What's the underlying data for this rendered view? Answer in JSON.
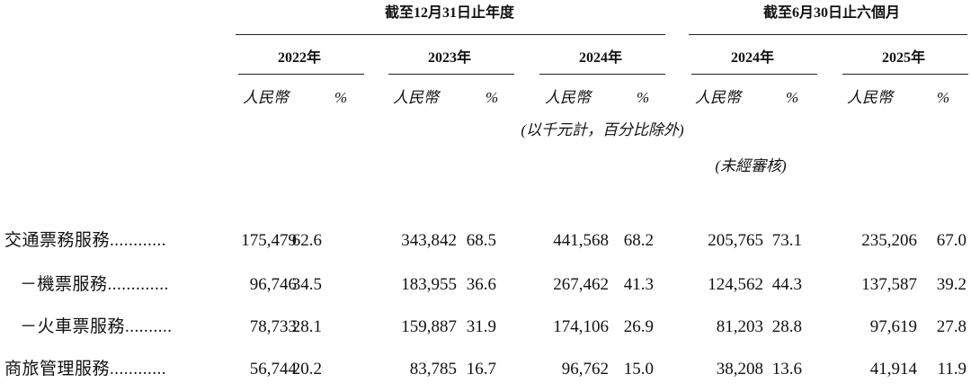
{
  "header": {
    "period_groups": [
      "截至12月31日止年度",
      "截至6月30日止六個月"
    ],
    "years": [
      "2022年",
      "2023年",
      "2024年",
      "2024年",
      "2025年"
    ],
    "units": [
      "人民幣",
      "%"
    ],
    "note": "(以千元計，百分比除外)",
    "unaudited": "(未經審核)"
  },
  "table": {
    "rows": [
      {
        "label": "交通票務服務............",
        "cells": [
          "175,479",
          "62.6",
          "343,842",
          "68.5",
          "441,568",
          "68.2",
          "205,765",
          "73.1",
          "235,206",
          "67.0"
        ]
      },
      {
        "label": "－機票服務.............",
        "cells": [
          "96,746",
          "34.5",
          "183,955",
          "36.6",
          "267,462",
          "41.3",
          "124,562",
          "44.3",
          "137,587",
          "39.2"
        ]
      },
      {
        "label": "－火車票服務..........",
        "cells": [
          "78,733",
          "28.1",
          "159,887",
          "31.9",
          "174,106",
          "26.9",
          "81,203",
          "28.8",
          "97,619",
          "27.8"
        ]
      },
      {
        "label": "商旅管理服務............",
        "cells": [
          "56,744",
          "20.2",
          "83,785",
          "16.7",
          "96,762",
          "15.0",
          "38,208",
          "13.6",
          "41,914",
          "11.9"
        ]
      }
    ]
  }
}
